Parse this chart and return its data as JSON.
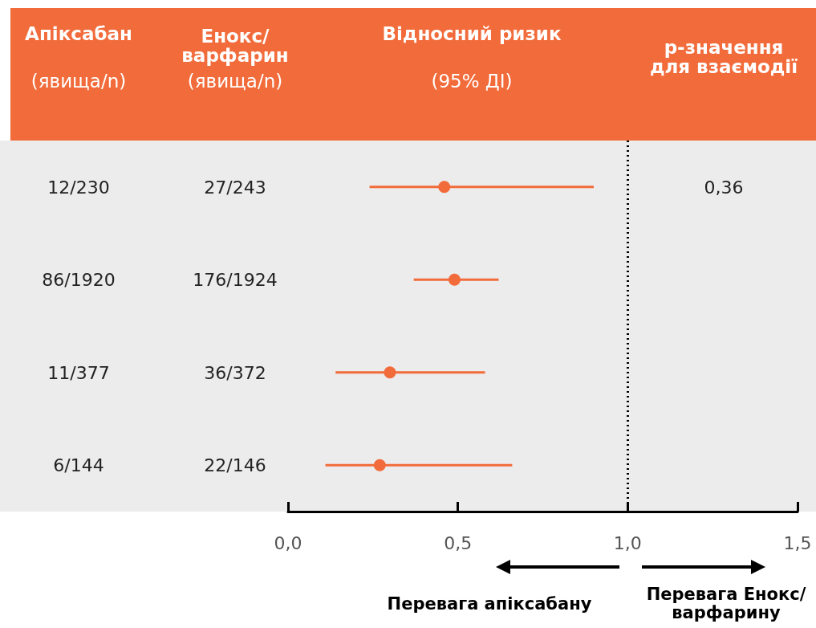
{
  "chart_data": {
    "type": "scatter",
    "orientation": "horizontal",
    "categories": [
      null,
      null,
      null,
      null
    ],
    "series": [
      {
        "color": "#f26b3a",
        "values": [
          0.46,
          0.49,
          0.3,
          0.27
        ],
        "errors": [
          [
            0.24,
            0.9
          ],
          [
            0.37,
            0.62
          ],
          [
            0.14,
            0.58
          ],
          [
            0.11,
            0.66
          ]
        ]
      }
    ],
    "xlim": [
      0,
      1.5
    ],
    "xticks": [
      {
        "value": 0,
        "label": "0,0"
      },
      {
        "value": 0.5,
        "label": "0,5"
      },
      {
        "value": 1,
        "label": "1,0"
      },
      {
        "value": 1.5,
        "label": "1,5"
      }
    ],
    "ref_lines": [
      {
        "axis": "x",
        "value": 1,
        "line_style": "dotted",
        "color": "#000000"
      }
    ],
    "marker": "circle",
    "grid": false,
    "tick_labels": "x",
    "annotations": [
      "Апіксабан",
      "(явища/n)",
      "Енокс/ варфарин",
      "(явища/n)",
      "Відносний ризик",
      "(95% ДІ)",
      "p-значення для взаємодії",
      "12/230",
      "27/243",
      "86/1920",
      "176/1924",
      "11/377",
      "36/372",
      "6/144",
      "22/146",
      "0,36",
      "Перевага апіксабану",
      "Перевага Енокс/ варфарину"
    ]
  }
}
